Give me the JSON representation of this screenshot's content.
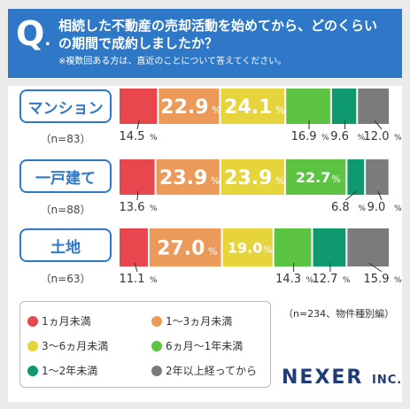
{
  "header": {
    "q_mark": "Q",
    "question_line1": "相続した不動産の売却活動を始めてから、どのくらい",
    "question_line2": "の期間で成約しましたか？",
    "note": "※複数回ある方は、直近のことについて答えてください。"
  },
  "chart_data": {
    "type": "bar",
    "orientation": "horizontal-stacked-100",
    "categories": [
      "マンション",
      "一戸建て",
      "土地"
    ],
    "category_counts": [
      "（n=83）",
      "（n=88）",
      "（n=63）"
    ],
    "series": [
      {
        "name": "1ヵ月未満",
        "color": "#e8474e",
        "values": [
          14.5,
          13.6,
          11.1
        ]
      },
      {
        "name": "1〜3ヵ月未満",
        "color": "#eb9a5a",
        "values": [
          22.9,
          23.9,
          27.0
        ]
      },
      {
        "name": "3〜6ヵ月未満",
        "color": "#e6d43d",
        "values": [
          24.1,
          23.9,
          19.0
        ]
      },
      {
        "name": "6ヵ月〜1年未満",
        "color": "#5dc443",
        "values": [
          16.9,
          22.7,
          14.3
        ]
      },
      {
        "name": "1〜2年未満",
        "color": "#0e9a6e",
        "values": [
          9.6,
          6.8,
          12.7
        ]
      },
      {
        "name": "2年以上経ってから",
        "color": "#7b7b7b",
        "values": [
          12.0,
          9.0,
          15.9
        ]
      }
    ],
    "value_suffix": "%",
    "xlim": [
      0,
      100
    ]
  },
  "total_note": "（n=234、物件種別編）",
  "logo": {
    "name": "NEXER",
    "suffix": "INC."
  }
}
